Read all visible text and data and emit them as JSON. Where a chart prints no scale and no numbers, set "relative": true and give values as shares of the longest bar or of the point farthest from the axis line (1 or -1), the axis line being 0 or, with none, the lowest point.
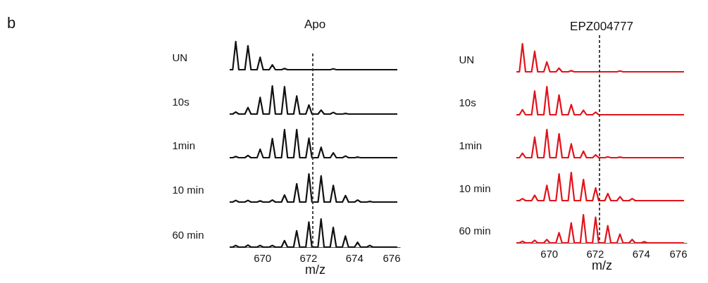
{
  "chart_data": [
    {
      "type": "line",
      "title": "Apo",
      "ylabel": "UN",
      "annotations": [
        "b"
      ],
      "relative": true,
      "categories": [
        null,
        null,
        null,
        null,
        null,
        null,
        null,
        null,
        null,
        null,
        null,
        null,
        null,
        null,
        null,
        null,
        null,
        null,
        null,
        null,
        null,
        null,
        null,
        null,
        null,
        null,
        null,
        null,
        null,
        null,
        null,
        null,
        null,
        null,
        null,
        null,
        null,
        null,
        null,
        null,
        null,
        null,
        null,
        null,
        null,
        null,
        null,
        null,
        null,
        null,
        null,
        null,
        null,
        null,
        null,
        null
      ],
      "series": [
        {
          "color": "#111111",
          "values": [
            0,
            0,
            1,
            0,
            0,
            0,
            0.85,
            0,
            0,
            0,
            0.44,
            0,
            0,
            0,
            0.17,
            0,
            0,
            0,
            0.04,
            0,
            0,
            0,
            0,
            0,
            0,
            0,
            0,
            0,
            0,
            0,
            0,
            0,
            0,
            0,
            0.03,
            0,
            0,
            0,
            0,
            0,
            0,
            0,
            0,
            0,
            0,
            0,
            0,
            0,
            0,
            0,
            0,
            0,
            0,
            0,
            0,
            0
          ]
        }
      ]
    },
    {
      "type": "line",
      "ylabel": "10s",
      "relative": true,
      "categories": [
        null,
        null,
        null,
        null,
        null,
        null,
        null,
        null,
        null,
        null,
        null,
        null,
        null,
        null,
        null,
        null,
        null,
        null,
        null,
        null,
        null,
        null,
        null,
        null,
        null,
        null,
        null,
        null,
        null,
        null,
        null,
        null,
        null,
        null,
        null,
        null,
        null,
        null,
        null,
        null,
        null,
        null,
        null,
        null,
        null,
        null,
        null,
        null,
        null,
        null,
        null,
        null,
        null,
        null,
        null,
        null
      ],
      "series": [
        {
          "color": "#111111",
          "values": [
            0,
            0,
            0.07,
            0,
            0,
            0,
            0.23,
            0,
            0,
            0,
            0.59,
            0,
            0,
            0,
            1,
            0,
            0,
            0,
            0.97,
            0,
            0,
            0,
            0.64,
            0,
            0,
            0,
            0.32,
            0,
            0,
            0,
            0.14,
            0,
            0,
            0,
            0.06,
            0,
            0,
            0,
            0.02,
            0,
            0,
            0,
            0,
            0,
            0,
            0,
            0,
            0,
            0,
            0,
            0,
            0,
            0,
            0,
            0,
            0
          ]
        }
      ]
    },
    {
      "type": "line",
      "ylabel": "1min",
      "relative": true,
      "categories": [
        null,
        null,
        null,
        null,
        null,
        null,
        null,
        null,
        null,
        null,
        null,
        null,
        null,
        null,
        null,
        null,
        null,
        null,
        null,
        null,
        null,
        null,
        null,
        null,
        null,
        null,
        null,
        null,
        null,
        null,
        null,
        null,
        null,
        null,
        null,
        null,
        null,
        null,
        null,
        null,
        null,
        null,
        null,
        null,
        null,
        null,
        null,
        null,
        null,
        null,
        null,
        null,
        null,
        null,
        null,
        null
      ],
      "series": [
        {
          "color": "#111111",
          "values": [
            0,
            0,
            0.04,
            0,
            0,
            0,
            0.08,
            0,
            0,
            0,
            0.3,
            0,
            0,
            0,
            0.68,
            0,
            0,
            0,
            1,
            0,
            0,
            0,
            1,
            0,
            0,
            0,
            0.69,
            0,
            0,
            0,
            0.37,
            0,
            0,
            0,
            0.17,
            0,
            0,
            0,
            0.06,
            0,
            0,
            0,
            0.02,
            0,
            0,
            0,
            0,
            0,
            0,
            0,
            0,
            0,
            0,
            0,
            0,
            0
          ]
        }
      ]
    },
    {
      "type": "line",
      "ylabel": "10 min",
      "relative": true,
      "categories": [
        null,
        null,
        null,
        null,
        null,
        null,
        null,
        null,
        null,
        null,
        null,
        null,
        null,
        null,
        null,
        null,
        null,
        null,
        null,
        null,
        null,
        null,
        null,
        null,
        null,
        null,
        null,
        null,
        null,
        null,
        null,
        null,
        null,
        null,
        null,
        null,
        null,
        null,
        null,
        null,
        null,
        null,
        null,
        null,
        null,
        null,
        null,
        null,
        null,
        null,
        null,
        null,
        null,
        null,
        null,
        null
      ],
      "series": [
        {
          "color": "#111111",
          "values": [
            0,
            0,
            0.06,
            0,
            0,
            0,
            0.06,
            0,
            0,
            0,
            0.04,
            0,
            0,
            0,
            0.07,
            0,
            0,
            0,
            0.25,
            0,
            0,
            0,
            0.65,
            0,
            0,
            0,
            1,
            0,
            0,
            0,
            0.93,
            0,
            0,
            0,
            0.59,
            0,
            0,
            0,
            0.23,
            0,
            0,
            0,
            0.07,
            0,
            0,
            0,
            0.02,
            0,
            0,
            0,
            0,
            0,
            0,
            0,
            0,
            0
          ]
        }
      ]
    },
    {
      "type": "line",
      "ylabel": "60 min",
      "xlabel": "m/z",
      "relative": true,
      "xlim": [
        668.585,
        676
      ],
      "xticks": [
        670,
        672,
        674,
        676
      ],
      "ref_lines": [
        {
          "axis": "x",
          "value": 672.2,
          "color": "#333333",
          "line_style": "dashed"
        }
      ],
      "x": [
        668.585,
        668.7175,
        668.85,
        668.9825,
        669.115,
        669.2475,
        669.38,
        669.5125,
        669.645,
        669.7775,
        669.91,
        670.0425,
        670.175,
        670.3075,
        670.44,
        670.5725,
        670.705,
        670.8375,
        670.97,
        671.1025,
        671.235,
        671.3675,
        671.5,
        671.6325,
        671.765,
        671.8975,
        672.03,
        672.1625,
        672.295,
        672.4275,
        672.56,
        672.6925,
        672.825,
        672.9575,
        673.09,
        673.2225,
        673.355,
        673.4875,
        673.62,
        673.7525,
        673.885,
        674.0175,
        674.15,
        674.2825,
        674.415,
        674.5475,
        674.68,
        674.8125,
        674.945,
        675.0775,
        675.21,
        675.3425,
        675.475,
        675.6075,
        675.74,
        675.8725
      ],
      "series": [
        {
          "color": "#111111",
          "values": [
            0,
            0,
            0.06,
            0,
            0,
            0,
            0.07,
            0,
            0,
            0,
            0.06,
            0,
            0,
            0,
            0.06,
            0,
            0,
            0,
            0.23,
            0,
            0,
            0,
            0.58,
            0,
            0,
            0,
            0.89,
            0,
            0,
            0,
            1,
            0,
            0,
            0,
            0.7,
            0,
            0,
            0,
            0.39,
            0,
            0,
            0,
            0.17,
            0,
            0,
            0,
            0.06,
            0,
            0,
            0,
            0,
            0,
            0,
            0,
            0,
            0
          ]
        }
      ]
    },
    {
      "type": "line",
      "title": "EPZ004777",
      "ylabel": "UN",
      "relative": true,
      "categories": [
        null,
        null,
        null,
        null,
        null,
        null,
        null,
        null,
        null,
        null,
        null,
        null,
        null,
        null,
        null,
        null,
        null,
        null,
        null,
        null,
        null,
        null,
        null,
        null,
        null,
        null,
        null,
        null,
        null,
        null,
        null,
        null,
        null,
        null,
        null,
        null,
        null,
        null,
        null,
        null,
        null,
        null,
        null,
        null,
        null,
        null,
        null,
        null,
        null,
        null,
        null,
        null,
        null,
        null,
        null,
        null
      ],
      "series": [
        {
          "color": "#e3131b",
          "values": [
            0,
            0,
            1,
            0,
            0,
            0,
            0.73,
            0,
            0,
            0,
            0.35,
            0,
            0,
            0,
            0.13,
            0,
            0,
            0,
            0.04,
            0,
            0,
            0,
            0,
            0,
            0,
            0,
            0,
            0,
            0,
            0,
            0,
            0,
            0,
            0,
            0.03,
            0,
            0,
            0,
            0,
            0,
            0,
            0,
            0,
            0,
            0,
            0,
            0,
            0,
            0,
            0,
            0,
            0,
            0,
            0,
            0,
            0
          ]
        }
      ]
    },
    {
      "type": "line",
      "ylabel": "10s",
      "relative": true,
      "categories": [
        null,
        null,
        null,
        null,
        null,
        null,
        null,
        null,
        null,
        null,
        null,
        null,
        null,
        null,
        null,
        null,
        null,
        null,
        null,
        null,
        null,
        null,
        null,
        null,
        null,
        null,
        null,
        null,
        null,
        null,
        null,
        null,
        null,
        null,
        null,
        null,
        null,
        null,
        null,
        null,
        null,
        null,
        null,
        null,
        null,
        null,
        null,
        null,
        null,
        null,
        null,
        null,
        null,
        null,
        null,
        null
      ],
      "series": [
        {
          "color": "#e3131b",
          "values": [
            0,
            0,
            0.18,
            0,
            0,
            0,
            0.84,
            0,
            0,
            0,
            1,
            0,
            0,
            0,
            0.7,
            0,
            0,
            0,
            0.36,
            0,
            0,
            0,
            0.16,
            0,
            0,
            0,
            0.09,
            0,
            0,
            0,
            0,
            0,
            0,
            0,
            0,
            0,
            0,
            0,
            0,
            0,
            0,
            0,
            0,
            0,
            0,
            0,
            0,
            0,
            0,
            0,
            0,
            0,
            0,
            0,
            0,
            0
          ]
        }
      ]
    },
    {
      "type": "line",
      "ylabel": "1min",
      "relative": true,
      "categories": [
        null,
        null,
        null,
        null,
        null,
        null,
        null,
        null,
        null,
        null,
        null,
        null,
        null,
        null,
        null,
        null,
        null,
        null,
        null,
        null,
        null,
        null,
        null,
        null,
        null,
        null,
        null,
        null,
        null,
        null,
        null,
        null,
        null,
        null,
        null,
        null,
        null,
        null,
        null,
        null,
        null,
        null,
        null,
        null,
        null,
        null,
        null,
        null,
        null,
        null,
        null,
        null,
        null,
        null,
        null,
        null
      ],
      "series": [
        {
          "color": "#e3131b",
          "values": [
            0,
            0,
            0.16,
            0,
            0,
            0,
            0.73,
            0,
            0,
            0,
            1,
            0,
            0,
            0,
            0.85,
            0,
            0,
            0,
            0.49,
            0,
            0,
            0,
            0.23,
            0,
            0,
            0,
            0.1,
            0,
            0,
            0,
            0.03,
            0,
            0,
            0,
            0.02,
            0,
            0,
            0,
            0,
            0,
            0,
            0,
            0,
            0,
            0,
            0,
            0,
            0,
            0,
            0,
            0,
            0,
            0,
            0,
            0,
            0
          ]
        }
      ]
    },
    {
      "type": "line",
      "ylabel": "10 min",
      "relative": true,
      "categories": [
        null,
        null,
        null,
        null,
        null,
        null,
        null,
        null,
        null,
        null,
        null,
        null,
        null,
        null,
        null,
        null,
        null,
        null,
        null,
        null,
        null,
        null,
        null,
        null,
        null,
        null,
        null,
        null,
        null,
        null,
        null,
        null,
        null,
        null,
        null,
        null,
        null,
        null,
        null,
        null,
        null,
        null,
        null,
        null,
        null,
        null,
        null,
        null,
        null,
        null,
        null,
        null,
        null,
        null,
        null,
        null
      ],
      "series": [
        {
          "color": "#e3131b",
          "values": [
            0,
            0,
            0.07,
            0,
            0,
            0,
            0.19,
            0,
            0,
            0,
            0.54,
            0,
            0,
            0,
            0.95,
            0,
            0,
            0,
            1,
            0,
            0,
            0,
            0.75,
            0,
            0,
            0,
            0.45,
            0,
            0,
            0,
            0.25,
            0,
            0,
            0,
            0.14,
            0,
            0,
            0,
            0.07,
            0,
            0,
            0,
            0,
            0,
            0,
            0,
            0,
            0,
            0,
            0,
            0,
            0,
            0,
            0,
            0,
            0
          ]
        }
      ]
    },
    {
      "type": "line",
      "ylabel": "60 min",
      "xlabel": "m/z",
      "relative": true,
      "xlim": [
        668.585,
        676
      ],
      "xticks": [
        670,
        672,
        674,
        676
      ],
      "ref_lines": [
        {
          "axis": "x",
          "value": 672.2,
          "color": "#333333",
          "line_style": "dashed"
        }
      ],
      "x": [
        668.585,
        668.7175,
        668.85,
        668.9825,
        669.115,
        669.2475,
        669.38,
        669.5125,
        669.645,
        669.7775,
        669.91,
        670.0425,
        670.175,
        670.3075,
        670.44,
        670.5725,
        670.705,
        670.8375,
        670.97,
        671.1025,
        671.235,
        671.3675,
        671.5,
        671.6325,
        671.765,
        671.8975,
        672.03,
        672.1625,
        672.295,
        672.4275,
        672.56,
        672.6925,
        672.825,
        672.9575,
        673.09,
        673.2225,
        673.355,
        673.4875,
        673.62,
        673.7525,
        673.885,
        674.0175,
        674.15,
        674.2825,
        674.415,
        674.5475,
        674.68,
        674.8125,
        674.945,
        675.0775,
        675.21,
        675.3425,
        675.475,
        675.6075,
        675.74,
        675.8725
      ],
      "series": [
        {
          "color": "#e3131b",
          "values": [
            0,
            0,
            0.06,
            0,
            0,
            0,
            0.09,
            0,
            0,
            0,
            0.12,
            0,
            0,
            0,
            0.36,
            0,
            0,
            0,
            0.71,
            0,
            0,
            0,
            1,
            0,
            0,
            0,
            0.91,
            0,
            0,
            0,
            0.61,
            0,
            0,
            0,
            0.31,
            0,
            0,
            0,
            0.12,
            0,
            0,
            0,
            0.04,
            0,
            0,
            0,
            0,
            0,
            0,
            0,
            0,
            0,
            0,
            0,
            0,
            0
          ]
        }
      ]
    }
  ]
}
